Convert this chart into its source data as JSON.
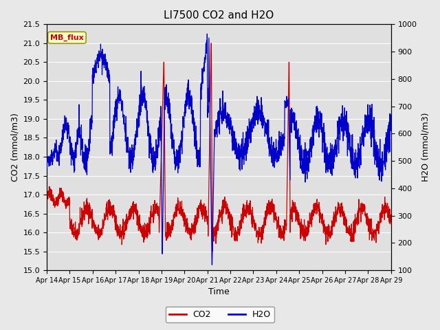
{
  "title": "LI7500 CO2 and H2O",
  "xlabel": "Time",
  "ylabel_left": "CO2 (mmol/m3)",
  "ylabel_right": "H2O (mmol/m3)",
  "ylim_left": [
    15.0,
    21.5
  ],
  "ylim_right": [
    100,
    1000
  ],
  "yticks_left": [
    15.0,
    15.5,
    16.0,
    16.5,
    17.0,
    17.5,
    18.0,
    18.5,
    19.0,
    19.5,
    20.0,
    20.5,
    21.0,
    21.5
  ],
  "yticks_right": [
    100,
    200,
    300,
    400,
    500,
    600,
    700,
    800,
    900,
    1000
  ],
  "xtick_labels": [
    "Apr 14",
    "Apr 15",
    "Apr 16",
    "Apr 17",
    "Apr 18",
    "Apr 19",
    "Apr 20",
    "Apr 21",
    "Apr 22",
    "Apr 23",
    "Apr 24",
    "Apr 25",
    "Apr 26",
    "Apr 27",
    "Apr 28",
    "Apr 29"
  ],
  "background_color": "#e8e8e8",
  "plot_bg_color": "#e0e0e0",
  "grid_color": "#ffffff",
  "co2_color": "#cc0000",
  "h2o_color": "#0000cc",
  "tag_text": "MB_flux",
  "tag_bg": "#ffffcc",
  "tag_edge": "#999900",
  "tag_text_color": "#cc0000"
}
